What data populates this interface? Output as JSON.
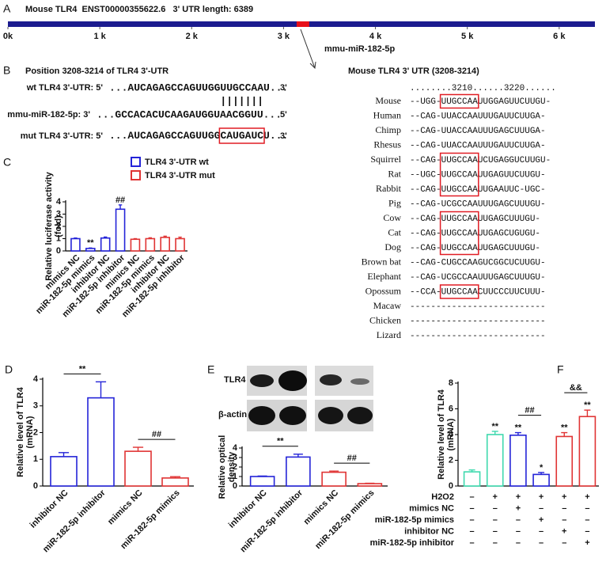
{
  "panel_labels": [
    "A",
    "B",
    "C",
    "D",
    "E",
    "F"
  ],
  "sequence_panel": {
    "title": "Position 3208-3214 of TLR4 3'-UTR",
    "wt": {
      "label": "wt TLR4 3'-UTR: 5'",
      "sequence": "...AUCAGAGCCAGUUGGUUGCCAAU...",
      "end": "3'"
    },
    "pairing": "|||||||",
    "mirna": {
      "label": "mmu-miR-182-5p: 3'",
      "sequence": "...GCCACACUCAAGAUGGUAACGGUU...",
      "end": "5'"
    },
    "mut": {
      "label": "mut TLR4 3'-UTR: 5'",
      "sequence_start": "...AUCAGAGCCAGUUGG",
      "mutated": "CAUGAUC",
      "sequence_end": "U...",
      "end": "3'"
    }
  },
  "alignment": {
    "title": "Mouse TLR4 3' UTR (3208-3214)",
    "ruler": "........3210......3220......",
    "rows": [
      {
        "name": "Mouse",
        "name_color": "#2ca02c",
        "sequence": "--UGG-UUGCCAAUUGGAGUUCUUGU-",
        "seq_color": "#cc22cc",
        "boxed": true
      },
      {
        "name": "Human",
        "name_color": "#2f4fd8",
        "sequence": "--CAG-UUACCAAUUUGAUUCUUGA-",
        "seq_color": "#222222",
        "boxed": false
      },
      {
        "name": "Chimp",
        "name_color": "#2ca02c",
        "sequence": "--CAG-UUACCAAUUUGAGCUUUGA-",
        "seq_color": "#2f4fd8",
        "boxed": false
      },
      {
        "name": "Rhesus",
        "name_color": "#2f4fd8",
        "sequence": "--CAG-UUACCAAUUUGAUUCUUGA-",
        "seq_color": "#222222",
        "boxed": false
      },
      {
        "name": "Squirrel",
        "name_color": "#2ca02c",
        "sequence": "--CAG-UUGCCAAUCUGAGGUCUUGU-",
        "seq_color": "#2f4fd8",
        "boxed": true
      },
      {
        "name": "Rat",
        "name_color": "#2ca02c",
        "sequence": "--UGC-UUGCCAAUUGAGUUCUUGU-",
        "seq_color": "#222222",
        "boxed": true
      },
      {
        "name": "Rabbit",
        "name_color": "#2ca02c",
        "sequence": "--CAG-UUGCCAAUUGAAUUC-UGC-",
        "seq_color": "#2f4fd8",
        "boxed": true
      },
      {
        "name": "Pig",
        "name_color": "#2ca02c",
        "sequence": "--CAG-UCGCCAAUUUGAGCUUUGU-",
        "seq_color": "#222222",
        "boxed": false
      },
      {
        "name": "Cow",
        "name_color": "#2f4fd8",
        "sequence": "--CAG-UUGCCAAUUGAGCUUUGU-",
        "seq_color": "#2f4fd8",
        "boxed": true
      },
      {
        "name": "Cat",
        "name_color": "#2f4fd8",
        "sequence": "--CAG-UUGCCAAUUGAGCUGUGU-",
        "seq_color": "#cc22cc",
        "boxed": true
      },
      {
        "name": "Dog",
        "name_color": "#2ca02c",
        "sequence": "--CAG-UUGCCAAUUGAGCUUUGU-",
        "seq_color": "#222222",
        "boxed": true
      },
      {
        "name": "Brown bat",
        "name_color": "#2f4fd8",
        "sequence": "--CAG-CUGCCAAGUCGGCUCUUGU-",
        "seq_color": "#2f4fd8",
        "boxed": false
      },
      {
        "name": "Elephant",
        "name_color": "#2ca02c",
        "sequence": "--CAG-UCGCCAAUUUGAGCUUUGU-",
        "seq_color": "#222222",
        "boxed": false
      },
      {
        "name": "Opossum",
        "name_color": "#2f4fd8",
        "sequence": "--CCA-UUGCCAACUUCCCUUCUUU-",
        "seq_color": "#2f4fd8",
        "boxed": true
      },
      {
        "name": "Macaw",
        "name_color": "#2ca02c",
        "sequence": "--------------------------",
        "seq_color": "#cc22cc",
        "boxed": false
      },
      {
        "name": "Chicken",
        "name_color": "#2ca02c",
        "sequence": "--------------------------",
        "seq_color": "#222222",
        "boxed": false
      },
      {
        "name": "Lizard",
        "name_color": "#2f4fd8",
        "sequence": "--------------------------",
        "seq_color": "#2f4fd8",
        "boxed": false
      }
    ]
  },
  "western_blot": {
    "rows": [
      "TLR4",
      "β-actin"
    ]
  },
  "chart_data": [
    {
      "type": "track",
      "title": "Mouse TLR4  ENST00000355622.6   3' UTR length: 6389",
      "xlim": [
        0,
        6389
      ],
      "xticks": [
        {
          "value": 0,
          "label": "0k"
        },
        {
          "value": 1000,
          "label": "1 k"
        },
        {
          "value": 2000,
          "label": "2 k"
        },
        {
          "value": 3000,
          "label": "3 k"
        },
        {
          "value": 4000,
          "label": "4 k"
        },
        {
          "value": 5000,
          "label": "5 k"
        },
        {
          "value": 6000,
          "label": "6 k"
        }
      ],
      "color": "#1c1c8f",
      "site": [
        3208,
        3214
      ],
      "site_color": "#e8101a",
      "site_label": "mmu-miR-182-5p"
    },
    {
      "type": "bar",
      "categories": [
        "mimics NC",
        "miR-182-5p mimics",
        "inhibitor NC",
        "miR-182-5p inhibitor",
        "mimics NC",
        "miR-182-5p mimics",
        "inhibitor NC",
        "miR-182-5p inhibitor"
      ],
      "series": [
        {
          "name": "TLR4 3'-UTR wt",
          "color": "#2424d8",
          "values": [
            1.0,
            0.2,
            1.05,
            3.4,
            null,
            null,
            null,
            null
          ],
          "errors": [
            0.05,
            0.04,
            0.08,
            0.35,
            null,
            null,
            null,
            null
          ],
          "signif": [
            null,
            "**",
            null,
            "##",
            null,
            null,
            null,
            null
          ]
        },
        {
          "name": "TLR4 3'-UTR mut",
          "color": "#e03434",
          "values": [
            null,
            null,
            null,
            null,
            0.95,
            1.0,
            1.1,
            1.0
          ],
          "errors": [
            null,
            null,
            null,
            null,
            0.05,
            0.07,
            0.1,
            0.12
          ]
        }
      ],
      "ylim": [
        0,
        4
      ],
      "yticks": [
        0,
        1,
        2,
        3,
        4
      ],
      "y_label": [
        "Relative luciferase activity",
        "(fold)"
      ]
    },
    {
      "type": "bar",
      "categories": [
        "inhibitor NC",
        "miR-182-5p inhibitor",
        "mimics NC",
        "miR-182-5p mimics"
      ],
      "values": [
        1.1,
        3.3,
        1.3,
        0.3
      ],
      "errors": [
        0.15,
        0.6,
        0.15,
        0.05
      ],
      "colors": [
        "#2424d8",
        "#2424d8",
        "#e03434",
        "#e03434"
      ],
      "comparisons": [
        {
          "between": [
            0,
            1
          ],
          "label": "**"
        },
        {
          "between": [
            2,
            3
          ],
          "label": "##"
        }
      ],
      "ylim": [
        0,
        4
      ],
      "yticks": [
        0,
        1,
        2,
        3,
        4
      ],
      "y_label": [
        "Relative level of TLR4",
        "(mRNA)"
      ]
    },
    {
      "type": "bar",
      "categories": [
        "inhibitor NC",
        "miR-182-5p inhibitor",
        "mimics NC",
        "miR-182-5p mimics"
      ],
      "values": [
        1.0,
        3.05,
        1.45,
        0.25
      ],
      "errors": [
        0.05,
        0.3,
        0.12,
        0.04
      ],
      "colors": [
        "#2424d8",
        "#2424d8",
        "#e03434",
        "#e03434"
      ],
      "comparisons": [
        {
          "between": [
            0,
            1
          ],
          "label": "**"
        },
        {
          "between": [
            2,
            3
          ],
          "label": "##"
        }
      ],
      "ylim": [
        0,
        4
      ],
      "yticks": [
        0,
        1,
        2,
        3,
        4
      ],
      "y_label": [
        "Relative optical",
        "density"
      ]
    },
    {
      "type": "bar",
      "values": [
        1.1,
        4.0,
        3.95,
        0.9,
        3.85,
        5.4
      ],
      "errors": [
        0.15,
        0.25,
        0.2,
        0.15,
        0.3,
        0.5
      ],
      "colors": [
        "#3fd9ae",
        "#3fd9ae",
        "#2424d8",
        "#2424d8",
        "#e03434",
        "#e03434"
      ],
      "signif": [
        null,
        "**",
        "**",
        "*",
        "**",
        "**"
      ],
      "comparisons": [
        {
          "between": [
            2,
            3
          ],
          "label": "##"
        },
        {
          "between": [
            4,
            5
          ],
          "label": "&&"
        }
      ],
      "ylim": [
        0,
        8
      ],
      "yticks": [
        0,
        2,
        4,
        6,
        8
      ],
      "y_label": [
        "Relative level of TLR4",
        "(mRNA)"
      ],
      "conditions": [
        {
          "name": "H2O2",
          "signs": [
            "–",
            "+",
            "+",
            "+",
            "+",
            "+"
          ]
        },
        {
          "name": "mimics NC",
          "signs": [
            "–",
            "–",
            "+",
            "–",
            "–",
            "–"
          ]
        },
        {
          "name": "miR-182-5p mimics",
          "signs": [
            "–",
            "–",
            "–",
            "+",
            "–",
            "–"
          ]
        },
        {
          "name": "inhibitor NC",
          "signs": [
            "–",
            "–",
            "–",
            "–",
            "+",
            "–"
          ]
        },
        {
          "name": "miR-182-5p inhibitor",
          "signs": [
            "–",
            "–",
            "–",
            "–",
            "–",
            "+"
          ]
        }
      ]
    }
  ]
}
